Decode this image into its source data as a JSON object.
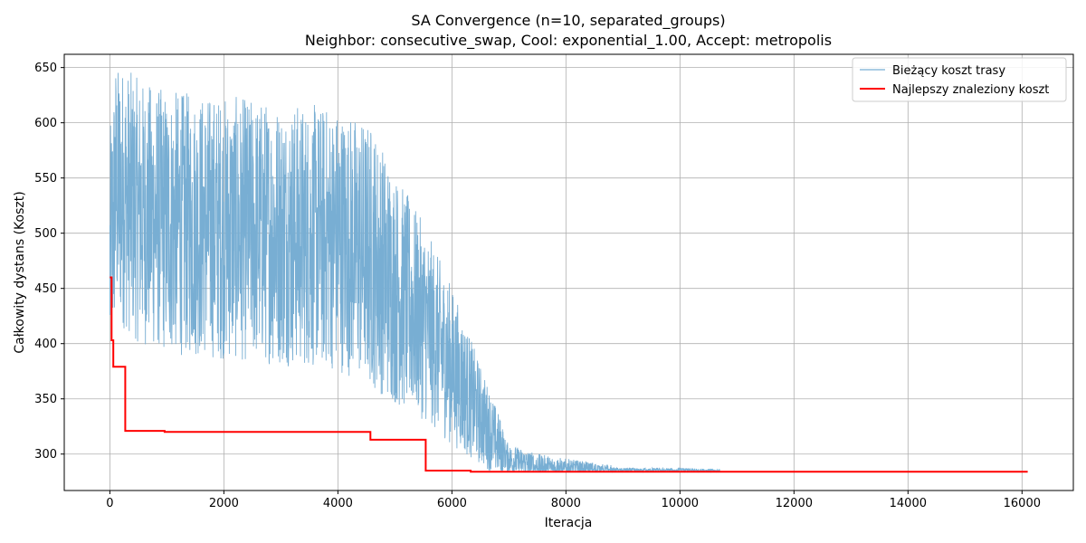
{
  "chart_data": {
    "type": "line",
    "title": "SA Convergence (n=10, separated_groups)",
    "subtitle": "Neighbor: consecutive_swap, Cool: exponential_1.00, Accept: metropolis",
    "xlabel": "Iteracja",
    "ylabel": "Całkowity dystans (Koszt)",
    "xlim": [
      -800,
      16900
    ],
    "ylim": [
      267,
      662
    ],
    "x_ticks": [
      0,
      2000,
      4000,
      6000,
      8000,
      10000,
      12000,
      14000,
      16000
    ],
    "y_ticks": [
      300,
      350,
      400,
      450,
      500,
      550,
      600,
      650
    ],
    "grid": true,
    "legend_position": "top-right",
    "series": [
      {
        "name": "Bieżący koszt trasy",
        "color": "#78aed3",
        "style": "noisy",
        "points": [
          [
            0,
            470
          ],
          [
            100,
            540
          ],
          [
            500,
            520
          ],
          [
            1000,
            510
          ],
          [
            2000,
            505
          ],
          [
            3000,
            500
          ],
          [
            4000,
            495
          ],
          [
            4600,
            480
          ],
          [
            5000,
            450
          ],
          [
            5500,
            420
          ],
          [
            6000,
            380
          ],
          [
            6500,
            335
          ],
          [
            6800,
            310
          ],
          [
            7000,
            295
          ],
          [
            7500,
            289
          ],
          [
            8000,
            287
          ],
          [
            9000,
            285
          ],
          [
            10000,
            285
          ],
          [
            10700,
            284
          ]
        ]
      },
      {
        "name": "Najlepszy znaleziony koszt",
        "color": "#ff0000",
        "style": "step",
        "points": [
          [
            0,
            460
          ],
          [
            30,
            460
          ],
          [
            30,
            403
          ],
          [
            60,
            403
          ],
          [
            60,
            379
          ],
          [
            270,
            379
          ],
          [
            270,
            321
          ],
          [
            960,
            321
          ],
          [
            960,
            320
          ],
          [
            4570,
            320
          ],
          [
            4570,
            313
          ],
          [
            5540,
            313
          ],
          [
            5540,
            285
          ],
          [
            6330,
            285
          ],
          [
            6330,
            284
          ],
          [
            16100,
            284
          ]
        ]
      }
    ]
  }
}
